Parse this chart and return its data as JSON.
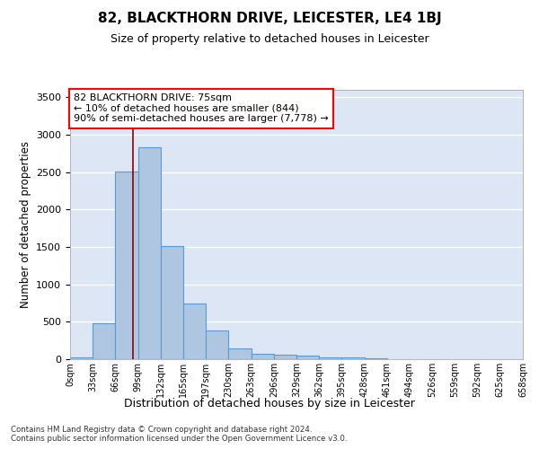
{
  "title": "82, BLACKTHORN DRIVE, LEICESTER, LE4 1BJ",
  "subtitle": "Size of property relative to detached houses in Leicester",
  "xlabel": "Distribution of detached houses by size in Leicester",
  "ylabel": "Number of detached properties",
  "bar_values": [
    20,
    480,
    2510,
    2830,
    1510,
    750,
    390,
    150,
    75,
    55,
    45,
    30,
    20,
    10,
    5,
    3,
    2,
    1,
    1,
    0
  ],
  "bar_labels": [
    "0sqm",
    "33sqm",
    "66sqm",
    "99sqm",
    "132sqm",
    "165sqm",
    "197sqm",
    "230sqm",
    "263sqm",
    "296sqm",
    "329sqm",
    "362sqm",
    "395sqm",
    "428sqm",
    "461sqm",
    "494sqm",
    "526sqm",
    "559sqm",
    "592sqm",
    "625sqm",
    "658sqm"
  ],
  "bar_color": "#aec6e0",
  "bar_edge_color": "#5b9bd5",
  "bg_color": "#dce6f5",
  "annotation_text_line1": "82 BLACKTHORN DRIVE: 75sqm",
  "annotation_text_line2": "← 10% of detached houses are smaller (844)",
  "annotation_text_line3": "90% of semi-detached houses are larger (7,778) →",
  "red_line_x": 2.27,
  "ylim": [
    0,
    3600
  ],
  "yticks": [
    0,
    500,
    1000,
    1500,
    2000,
    2500,
    3000,
    3500
  ],
  "footer_line1": "Contains HM Land Registry data © Crown copyright and database right 2024.",
  "footer_line2": "Contains public sector information licensed under the Open Government Licence v3.0."
}
